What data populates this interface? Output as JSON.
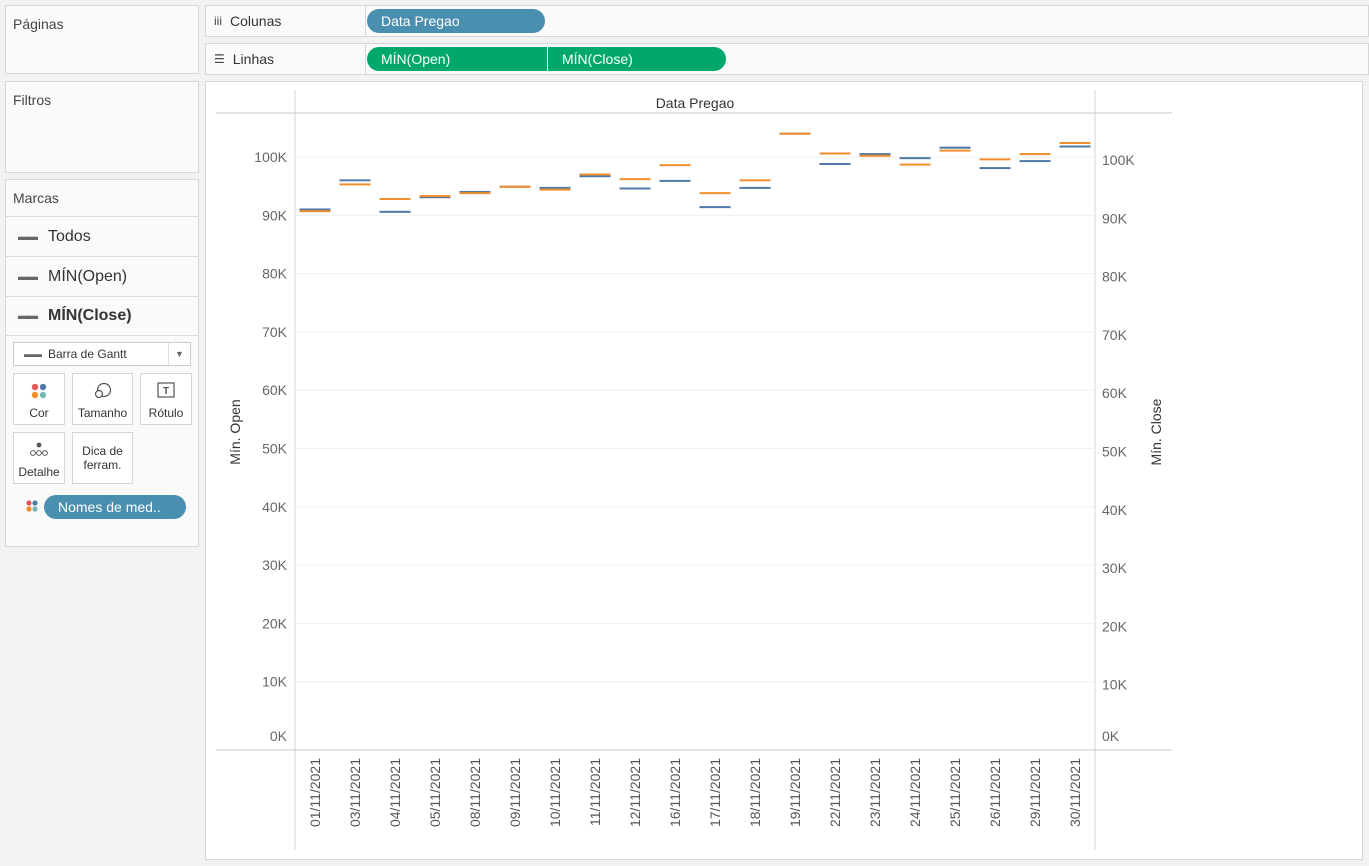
{
  "left_panel": {
    "pages_title": "Páginas",
    "filters_title": "Filtros",
    "marks_title": "Marcas",
    "marks_rows": [
      {
        "label": "Todos",
        "bold": false
      },
      {
        "label": "MÍN(Open)",
        "bold": false
      },
      {
        "label": "MÍN(Close)",
        "bold": true
      }
    ],
    "mark_type": "Barra de Gantt",
    "buttons": {
      "color": "Cor",
      "size": "Tamanho",
      "label": "Rótulo",
      "detail": "Detalhe",
      "tooltip_line1": "Dica de",
      "tooltip_line2": "ferram."
    },
    "color_pill": "Nomes de med.."
  },
  "shelves": {
    "columns_label": "Colunas",
    "columns_pill": "Data Pregao",
    "rows_label": "Linhas",
    "rows_pills": [
      "MÍN(Open)",
      "MÍN(Close)"
    ]
  },
  "colors": {
    "open": "#4e79a7",
    "close": "#f28e2b",
    "pill_blue": "#4b8fb0",
    "pill_green": "#00a86b"
  },
  "chart_data": {
    "type": "gantt",
    "header": "Data Pregao",
    "ylabel_left": "Mín. Open",
    "ylabel_right": "Mín. Close",
    "ylim": [
      0,
      110000
    ],
    "yticks": [
      "0K",
      "10K",
      "20K",
      "30K",
      "40K",
      "50K",
      "60K",
      "70K",
      "80K",
      "90K",
      "100K"
    ],
    "categories": [
      "01/11/2021",
      "03/11/2021",
      "04/11/2021",
      "05/11/2021",
      "08/11/2021",
      "09/11/2021",
      "10/11/2021",
      "11/11/2021",
      "12/11/2021",
      "16/11/2021",
      "17/11/2021",
      "18/11/2021",
      "19/11/2021",
      "22/11/2021",
      "23/11/2021",
      "24/11/2021",
      "25/11/2021",
      "26/11/2021",
      "29/11/2021",
      "30/11/2021"
    ],
    "series": [
      {
        "name": "MÍN(Open)",
        "values": [
          91000,
          96000,
          90600,
          93100,
          94000,
          94900,
          94700,
          96700,
          94600,
          95900,
          91400,
          94700,
          104000,
          98800,
          100500,
          99800,
          101600,
          98100,
          99300,
          101800
        ]
      },
      {
        "name": "MÍN(Close)",
        "values": [
          90700,
          95300,
          92800,
          93300,
          93800,
          94900,
          94400,
          97000,
          96200,
          98600,
          93800,
          96000,
          104000,
          100600,
          100200,
          98700,
          101100,
          99600,
          100500,
          102400
        ]
      }
    ],
    "grid": true
  }
}
